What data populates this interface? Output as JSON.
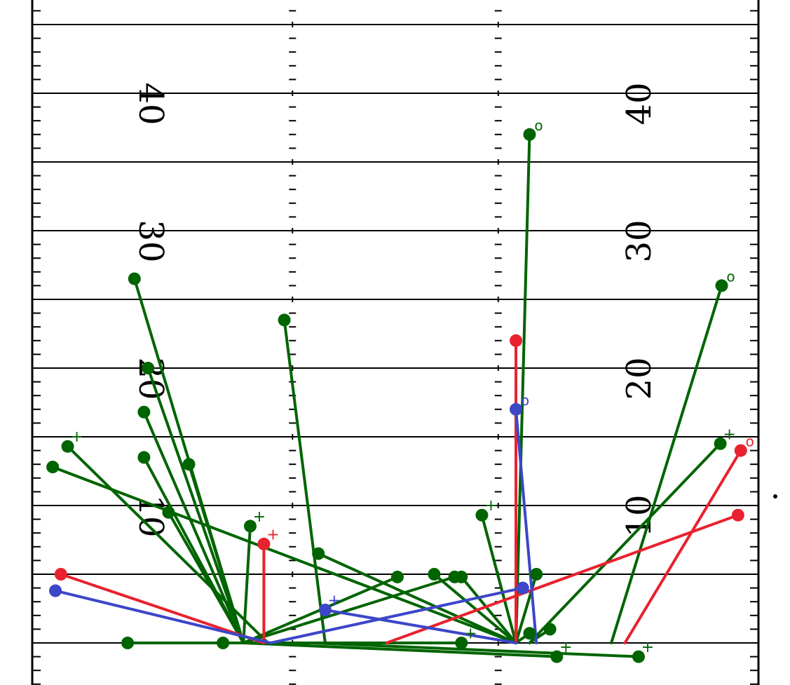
{
  "colors": {
    "complete": "#006400",
    "incomplete": "#e8222e",
    "other": "#3c46c8",
    "line": "#000000"
  },
  "field": {
    "left_numbers": [
      "40",
      "30",
      "20",
      "10"
    ],
    "right_numbers": [
      "40",
      "30",
      "20",
      "10"
    ]
  },
  "chart_data": {
    "type": "scatter",
    "title": "",
    "xlabel": "",
    "ylabel": "",
    "x_unit": "yards across field (sideline to sideline)",
    "y_unit": "yards downfield from line of scrimmage",
    "xlim": [
      0,
      53.3
    ],
    "ylim": [
      -3,
      47
    ],
    "yard_lines": [
      0,
      5,
      10,
      15,
      20,
      25,
      30,
      35,
      40,
      45
    ],
    "field_numbers": [
      10,
      20,
      30,
      40
    ],
    "passes": [
      {
        "result": "complete",
        "from": [
          15.5,
          0
        ],
        "to": [
          7.5,
          26.5
        ],
        "marker": ""
      },
      {
        "result": "complete",
        "from": [
          21.5,
          0
        ],
        "to": [
          18.5,
          23.5
        ],
        "marker": ""
      },
      {
        "result": "complete",
        "from": [
          15.5,
          0
        ],
        "to": [
          8.5,
          20.0
        ],
        "marker": ""
      },
      {
        "result": "complete",
        "from": [
          15.5,
          0
        ],
        "to": [
          8.2,
          16.8
        ],
        "marker": ""
      },
      {
        "result": "complete",
        "from": [
          15.5,
          0
        ],
        "to": [
          8.2,
          13.5
        ],
        "marker": ""
      },
      {
        "result": "complete",
        "from": [
          15.5,
          0
        ],
        "to": [
          11.5,
          13.0
        ],
        "marker": ""
      },
      {
        "result": "complete",
        "from": [
          15.5,
          0
        ],
        "to": [
          10.0,
          9.5
        ],
        "marker": ""
      },
      {
        "result": "complete",
        "from": [
          17.3,
          0
        ],
        "to": [
          2.6,
          14.3
        ],
        "marker": "+"
      },
      {
        "result": "complete",
        "from": [
          35.5,
          0
        ],
        "to": [
          1.5,
          12.8
        ],
        "marker": ""
      },
      {
        "result": "complete",
        "from": [
          35.5,
          0
        ],
        "to": [
          21.0,
          6.5
        ],
        "marker": ""
      },
      {
        "result": "complete",
        "from": [
          15.5,
          0
        ],
        "to": [
          16.0,
          8.5
        ],
        "marker": "+"
      },
      {
        "result": "complete",
        "from": [
          15.5,
          0
        ],
        "to": [
          14.0,
          0
        ],
        "marker": ""
      },
      {
        "result": "complete",
        "from": [
          14.5,
          0
        ],
        "to": [
          7.0,
          0
        ],
        "marker": ""
      },
      {
        "result": "complete",
        "from": [
          15.5,
          0
        ],
        "to": [
          26.8,
          4.8
        ],
        "marker": ""
      },
      {
        "result": "complete",
        "from": [
          15.5,
          0
        ],
        "to": [
          31.5,
          0
        ],
        "marker": "+"
      },
      {
        "result": "complete",
        "from": [
          15.5,
          0
        ],
        "to": [
          31.0,
          4.8
        ],
        "marker": ""
      },
      {
        "result": "complete",
        "from": [
          35.5,
          0
        ],
        "to": [
          29.5,
          5.0
        ],
        "marker": ""
      },
      {
        "result": "complete",
        "from": [
          35.5,
          0
        ],
        "to": [
          36.5,
          37.0
        ],
        "marker": "o"
      },
      {
        "result": "complete",
        "from": [
          35.5,
          0
        ],
        "to": [
          31.5,
          4.8
        ],
        "marker": ""
      },
      {
        "result": "complete",
        "from": [
          35.5,
          0
        ],
        "to": [
          33.0,
          9.3
        ],
        "marker": "+"
      },
      {
        "result": "complete",
        "from": [
          35.5,
          0
        ],
        "to": [
          36.5,
          0.7
        ],
        "marker": ""
      },
      {
        "result": "complete",
        "from": [
          35.5,
          0
        ],
        "to": [
          37.0,
          5.0
        ],
        "marker": ""
      },
      {
        "result": "complete",
        "from": [
          15.5,
          0
        ],
        "to": [
          38.5,
          -1.0
        ],
        "marker": "+"
      },
      {
        "result": "complete",
        "from": [
          36.5,
          0
        ],
        "to": [
          50.5,
          14.5
        ],
        "marker": "+"
      },
      {
        "result": "complete",
        "from": [
          36.5,
          0
        ],
        "to": [
          38.0,
          1.0
        ],
        "marker": ""
      },
      {
        "result": "complete",
        "from": [
          42.5,
          0
        ],
        "to": [
          50.6,
          26.0
        ],
        "marker": "o"
      },
      {
        "result": "complete",
        "from": [
          20.5,
          0
        ],
        "to": [
          44.5,
          -1.0
        ],
        "marker": "+"
      },
      {
        "result": "incomplete",
        "from": [
          17.0,
          0
        ],
        "to": [
          2.1,
          5.0
        ],
        "marker": ""
      },
      {
        "result": "incomplete",
        "from": [
          17.0,
          0
        ],
        "to": [
          17.0,
          7.2
        ],
        "marker": "+"
      },
      {
        "result": "incomplete",
        "from": [
          35.5,
          0
        ],
        "to": [
          35.5,
          22.0
        ],
        "marker": ""
      },
      {
        "result": "incomplete",
        "from": [
          26.0,
          0
        ],
        "to": [
          51.8,
          9.3
        ],
        "marker": ""
      },
      {
        "result": "incomplete",
        "from": [
          43.5,
          0
        ],
        "to": [
          52.0,
          14.0
        ],
        "marker": "o"
      },
      {
        "result": "other",
        "from": [
          17.5,
          0
        ],
        "to": [
          1.7,
          3.8
        ],
        "marker": ""
      },
      {
        "result": "other",
        "from": [
          17.5,
          0
        ],
        "to": [
          36.0,
          4.0
        ],
        "marker": ""
      },
      {
        "result": "other",
        "from": [
          35.5,
          0
        ],
        "to": [
          21.5,
          2.4
        ],
        "marker": "+"
      },
      {
        "result": "other",
        "from": [
          37.0,
          0
        ],
        "to": [
          35.5,
          17.0
        ],
        "marker": "o"
      }
    ]
  }
}
